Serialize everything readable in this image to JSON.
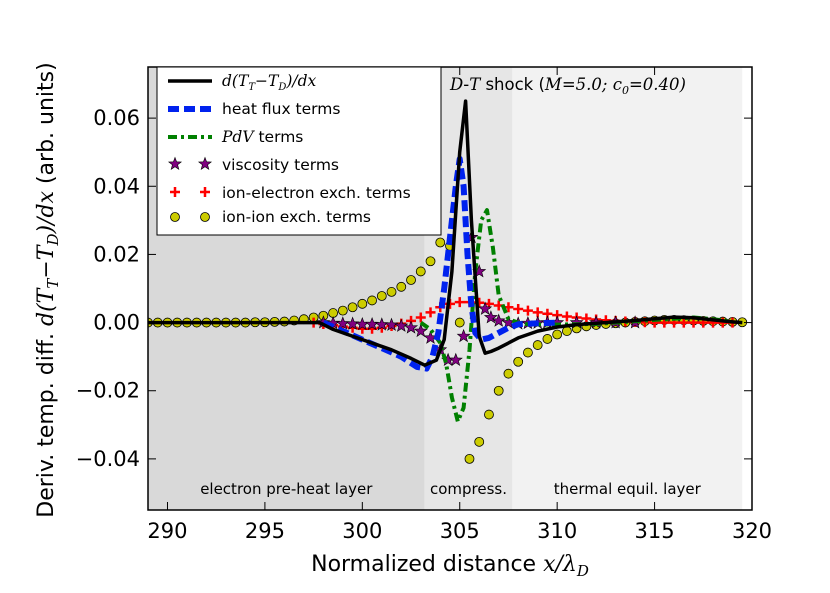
{
  "chart_data": {
    "type": "line",
    "title": "D-T shock (M=5.0; c₀=0.40)",
    "title_parts": {
      "d": "D",
      "dash": "-",
      "t": "T",
      "word": " shock (",
      "m": "M",
      "m_val": "=5.0; ",
      "c": "c",
      "c_sub": "0",
      "c_val": "=0.40)"
    },
    "xlabel": "Normalized distance x/λ_D",
    "xlabel_parts": {
      "text": "Normalized distance ",
      "x": "x",
      "slash": "/λ",
      "sub": "D"
    },
    "ylabel": "Deriv. temp. diff. d(T_T−T_D)/dx (arb. units)",
    "ylabel_parts": {
      "pre": "Deriv. temp. diff. ",
      "d": "d(T",
      "sub1": "T",
      "minus": "−T",
      "sub2": "D",
      "close": ")/",
      "dx": "dx",
      "post": " (arb. units)"
    },
    "xlim": [
      289,
      320
    ],
    "ylim": [
      -0.055,
      0.075
    ],
    "xticks": [
      290,
      295,
      300,
      305,
      310,
      315,
      320
    ],
    "xtick_labels": [
      "290",
      "295",
      "300",
      "305",
      "310",
      "315",
      "320"
    ],
    "yticks": [
      -0.04,
      -0.02,
      0.0,
      0.02,
      0.04,
      0.06
    ],
    "ytick_labels": [
      "−0.04",
      "−0.02",
      "0.00",
      "0.02",
      "0.04",
      "0.06"
    ],
    "regions": [
      {
        "name": "electron pre-heat layer",
        "x0": 289,
        "x1": 303.2,
        "color": "#d9d9d9"
      },
      {
        "name": "compress.",
        "x0": 303.2,
        "x1": 307.7,
        "color": "#e6e6e6"
      },
      {
        "name": "thermal equil. layer",
        "x0": 307.7,
        "x1": 319.5,
        "color": "#f2f2f2"
      }
    ],
    "series": [
      {
        "name": "d(T_T−T_D)/dx",
        "legend_parts": {
          "a": "d(T",
          "s1": "T",
          "b": "−T",
          "s2": "D",
          "c": ")/dx"
        },
        "style": "solid",
        "color": "#000000",
        "x": [
          289,
          296,
          297.8,
          298.5,
          300,
          301.5,
          302.5,
          303.2,
          303.8,
          304.2,
          304.6,
          305.0,
          305.3,
          305.6,
          306.0,
          306.3,
          306.6,
          307.0,
          307.5,
          308.0,
          309.0,
          310.0,
          311.0,
          312.0,
          313.0,
          314.0,
          315.0,
          316.0,
          317.0,
          318.0,
          319.0,
          319.5
        ],
        "y": [
          0,
          0,
          0,
          -0.002,
          -0.005,
          -0.008,
          -0.0105,
          -0.0125,
          -0.011,
          -0.005,
          0.015,
          0.05,
          0.065,
          0.03,
          -0.004,
          -0.009,
          -0.0085,
          -0.0075,
          -0.006,
          -0.0045,
          -0.0025,
          -0.0013,
          -0.0006,
          -0.0002,
          0.0002,
          0.0006,
          0.0011,
          0.0016,
          0.0014,
          0.0008,
          0.0002,
          0
        ]
      },
      {
        "name": "heat flux terms",
        "style": "dashed",
        "color": "#0022ee",
        "x": [
          298.0,
          299.0,
          300.0,
          301.0,
          302.0,
          302.8,
          303.3,
          303.6,
          303.9,
          304.2,
          304.5,
          304.8,
          305.0,
          305.2,
          305.4,
          305.6,
          305.8,
          306.1,
          306.5,
          307.0,
          307.5,
          308.0,
          309.0,
          310.0
        ],
        "y": [
          0,
          -0.0025,
          -0.005,
          -0.0075,
          -0.01,
          -0.013,
          -0.0135,
          -0.01,
          -0.003,
          0.01,
          0.025,
          0.04,
          0.048,
          0.04,
          0.02,
          0.005,
          -0.003,
          -0.005,
          -0.0045,
          -0.003,
          -0.0015,
          -0.0005,
          -0.0002,
          0
        ]
      },
      {
        "name": "PdV terms",
        "legend_parts": {
          "math": "PdV",
          "text": " terms"
        },
        "style": "dashdot",
        "color": "#008000",
        "x": [
          303.0,
          303.5,
          304.0,
          304.3,
          304.6,
          304.9,
          305.2,
          305.5,
          305.8,
          306.1,
          306.4,
          306.7,
          307.0,
          307.5,
          308.0,
          308.5,
          310.0,
          312.0,
          315.0,
          317.0,
          318.0,
          319.0
        ],
        "y": [
          0,
          -0.002,
          -0.006,
          -0.012,
          -0.022,
          -0.029,
          -0.025,
          -0.008,
          0.015,
          0.03,
          0.033,
          0.022,
          0.008,
          0.001,
          0.0,
          -0.0005,
          -0.0006,
          -0.0004,
          0.0008,
          0.0015,
          0.001,
          0.0003
        ]
      },
      {
        "name": "viscosity terms",
        "style": "star",
        "color": "#800080",
        "x": [
          298.0,
          298.5,
          299.0,
          299.5,
          300.0,
          300.5,
          301.0,
          301.5,
          302.0,
          302.5,
          303.0,
          303.5,
          304.0,
          304.4,
          304.8,
          305.2,
          305.6,
          306.0,
          306.3,
          306.6,
          307.0,
          307.5,
          308.0,
          308.5,
          309.0,
          309.5,
          310.0,
          311.0,
          312.0,
          313.0,
          314.0
        ],
        "y": [
          0,
          -0.0002,
          -0.0003,
          -0.0004,
          -0.0005,
          -0.0005,
          -0.0006,
          -0.0007,
          -0.001,
          -0.0015,
          -0.0025,
          -0.0045,
          -0.008,
          -0.011,
          -0.011,
          -0.004,
          0.025,
          0.015,
          0.004,
          0.0015,
          0.0005,
          0.0,
          -0.0003,
          -0.0002,
          -0.0001,
          0,
          0,
          0,
          0,
          0,
          0
        ]
      },
      {
        "name": "ion-electron exch. terms",
        "style": "plus",
        "color": "#ff0000",
        "x": [
          297.5,
          298.0,
          298.5,
          299.0,
          299.5,
          300.0,
          300.5,
          301.0,
          301.5,
          302.0,
          302.5,
          303.0,
          303.5,
          304.0,
          304.5,
          305.0,
          305.5,
          306.0,
          306.5,
          307.0,
          307.5,
          308.0,
          308.5,
          309.0,
          309.5,
          310.0,
          310.5,
          311.0,
          311.5,
          312.0,
          312.5,
          313.0,
          313.5,
          314.0,
          314.5,
          315.0,
          315.5,
          316.0,
          316.5,
          317.0,
          317.5,
          318.0,
          318.5,
          319.0
        ],
        "y": [
          0,
          -0.0004,
          -0.0008,
          -0.0012,
          -0.0015,
          -0.0018,
          -0.0018,
          -0.0015,
          -0.001,
          -0.0003,
          0.0005,
          0.0015,
          0.003,
          0.0045,
          0.0055,
          0.006,
          0.006,
          0.0058,
          0.0055,
          0.005,
          0.0045,
          0.004,
          0.0035,
          0.003,
          0.0026,
          0.0022,
          0.0018,
          0.0015,
          0.0012,
          0.0009,
          0.0007,
          0.0005,
          0.0003,
          0.0002,
          0.0001,
          0.0,
          0.0,
          0.0,
          0.0,
          0.0,
          0.0,
          0.0,
          0.0,
          0.0
        ]
      },
      {
        "name": "ion-ion exch. terms",
        "style": "circle",
        "color": "#cccc00",
        "x": [
          289.0,
          289.5,
          290.0,
          290.5,
          291.0,
          291.5,
          292.0,
          292.5,
          293.0,
          293.5,
          294.0,
          294.5,
          295.0,
          295.5,
          296.0,
          296.5,
          297.0,
          297.5,
          298.0,
          298.5,
          299.0,
          299.5,
          300.0,
          300.5,
          301.0,
          301.5,
          302.0,
          302.5,
          303.0,
          303.5,
          304.0,
          304.5,
          305.0,
          305.5,
          306.0,
          306.5,
          307.0,
          307.5,
          308.0,
          308.5,
          309.0,
          309.5,
          310.0,
          310.5,
          311.0,
          311.5,
          312.0,
          312.5,
          313.0,
          313.5,
          314.0,
          314.5,
          315.0,
          315.5,
          316.0,
          316.5,
          317.0,
          317.5,
          318.0,
          318.5,
          319.0,
          319.5
        ],
        "y": [
          0,
          0,
          0,
          0,
          0,
          0,
          0,
          0,
          0,
          0,
          0,
          0.0001,
          0.0001,
          0.0002,
          0.0003,
          0.0006,
          0.001,
          0.0015,
          0.002,
          0.0028,
          0.0035,
          0.0045,
          0.0055,
          0.0065,
          0.0078,
          0.009,
          0.0105,
          0.0125,
          0.015,
          0.018,
          0.0235,
          0.0225,
          0.0,
          -0.04,
          -0.035,
          -0.027,
          -0.02,
          -0.015,
          -0.0115,
          -0.0088,
          -0.0066,
          -0.0048,
          -0.0035,
          -0.0025,
          -0.0017,
          -0.0011,
          -0.0007,
          -0.0004,
          -0.0002,
          0.0,
          0.0002,
          0.0004,
          0.0006,
          0.0008,
          0.0008,
          0.0007,
          0.0006,
          0.0005,
          0.0004,
          0.0003,
          0.0002,
          0.0001
        ]
      }
    ]
  }
}
